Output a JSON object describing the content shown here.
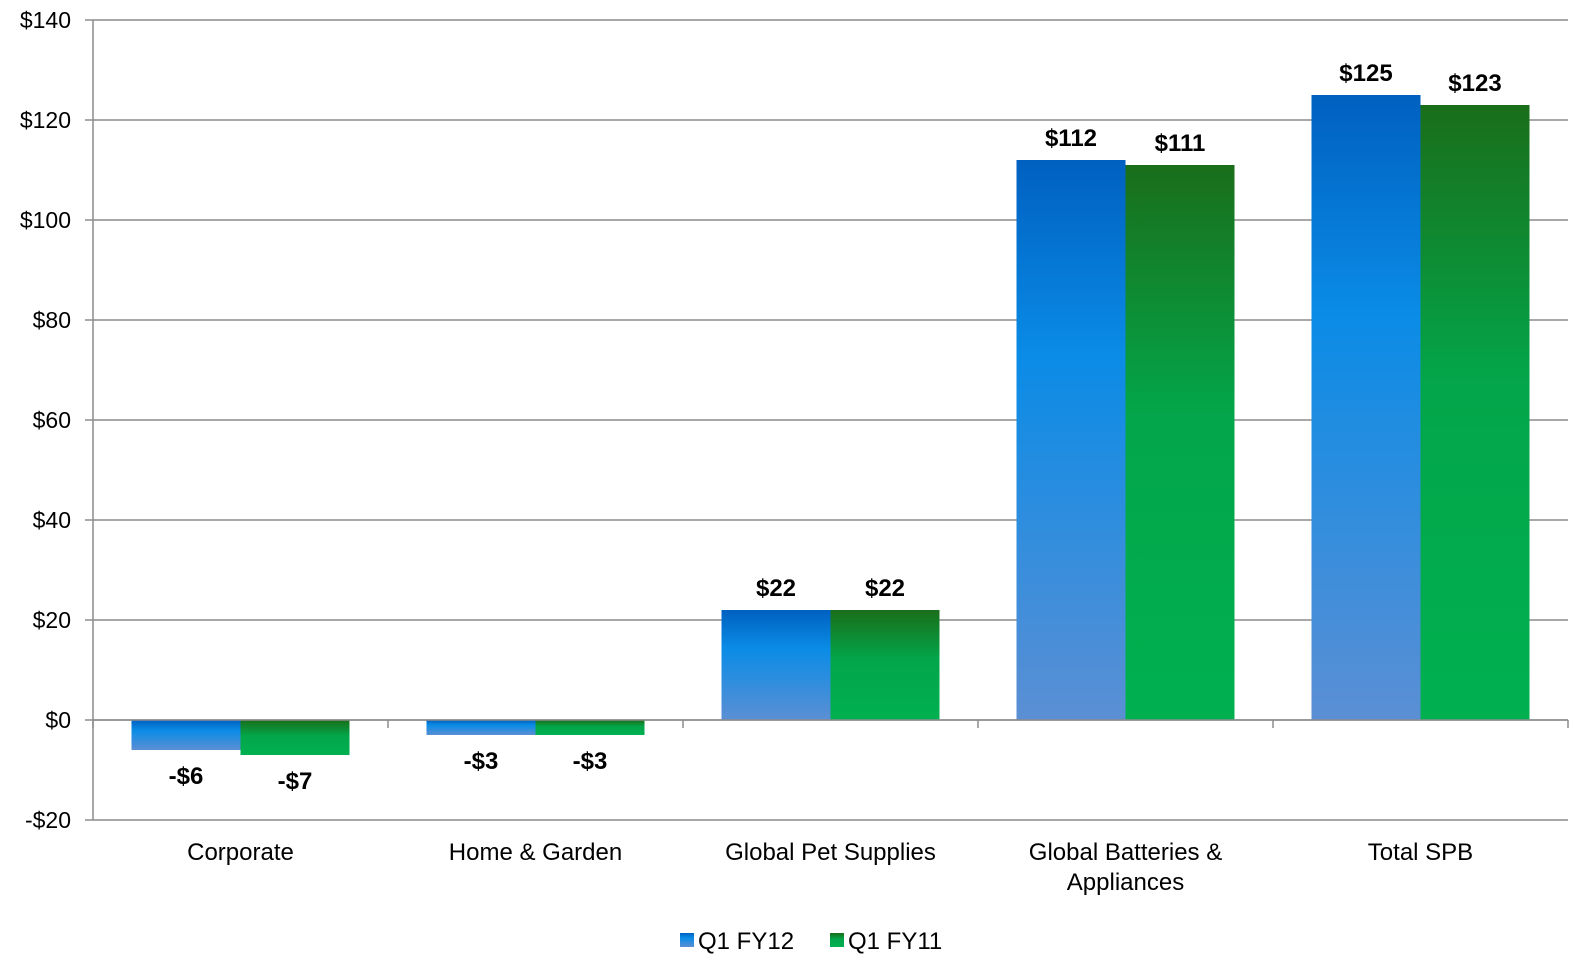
{
  "chart_data": {
    "type": "bar",
    "title": "",
    "xlabel": "",
    "ylabel": "",
    "ylim": [
      -20,
      140
    ],
    "yticks": [
      -20,
      0,
      20,
      40,
      60,
      80,
      100,
      120,
      140
    ],
    "ytick_labels": [
      "-$20",
      "$0",
      "$20",
      "$40",
      "$60",
      "$80",
      "$100",
      "$120",
      "$140"
    ],
    "grid": true,
    "legend_position": "bottom",
    "categories": [
      [
        "Corporate"
      ],
      [
        "Home & Garden"
      ],
      [
        "Global Pet Supplies"
      ],
      [
        "Global Batteries &",
        "Appliances"
      ],
      [
        "Total SPB"
      ]
    ],
    "series": [
      {
        "name": "Q1 FY12",
        "values": [
          -6,
          -3,
          22,
          112,
          125
        ],
        "labels": [
          "-$6",
          "-$3",
          "$22",
          "$112",
          "$125"
        ],
        "color_top": "#0060c0",
        "color_mid": "#0a8ce6",
        "color_bottom": "#5b8fd4"
      },
      {
        "name": "Q1 FY11",
        "values": [
          -7,
          -3,
          22,
          111,
          123
        ],
        "labels": [
          "-$7",
          "-$3",
          "$22",
          "$111",
          "$123"
        ],
        "color_top": "#1a6e1a",
        "color_mid": "#03a64a",
        "color_bottom": "#00b050"
      }
    ]
  }
}
